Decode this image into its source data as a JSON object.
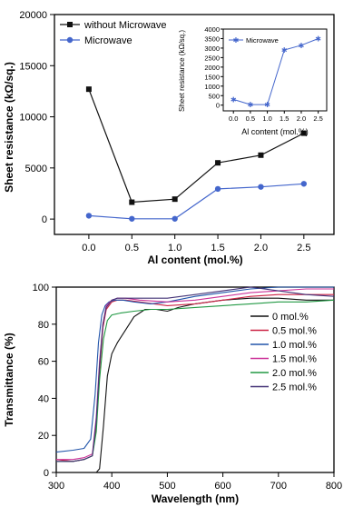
{
  "chart_data": [
    {
      "type": "line",
      "panel": "top",
      "title": "",
      "xlabel": "Al content (mol.%)",
      "ylabel": "Sheet resistance (kΩ/sq.)",
      "xlim": [
        -0.4,
        2.85
      ],
      "ylim": [
        -1500,
        20000
      ],
      "x": [
        0.0,
        0.5,
        1.0,
        1.5,
        2.0,
        2.5
      ],
      "xticks": [
        "0.0",
        "0.5",
        "1.0",
        "1.5",
        "2.0",
        "2.5"
      ],
      "yticks": [
        "0",
        "5000",
        "10000",
        "15000",
        "20000"
      ],
      "series": [
        {
          "name": "without Microwave",
          "marker": "square",
          "color": "#111111",
          "values": [
            12700,
            1650,
            1950,
            5500,
            6250,
            8400
          ]
        },
        {
          "name": "Microwave",
          "marker": "circle",
          "color": "#4466cc",
          "values": [
            330,
            30,
            30,
            2950,
            3150,
            3450
          ]
        }
      ],
      "legend": "top-left",
      "inset": {
        "type": "line",
        "xlabel": "Al content (mol.%)",
        "ylabel": "Sheet resistance (kΩ/sq.)",
        "xlim": [
          -0.3,
          2.75
        ],
        "ylim": [
          -300,
          4000
        ],
        "xticks": [
          "0.0",
          "0.5",
          "1.0",
          "1.5",
          "2.0",
          "2.5"
        ],
        "yticks": [
          "0",
          "500",
          "1000",
          "1500",
          "2000",
          "2500",
          "3000",
          "3500",
          "4000"
        ],
        "series": [
          {
            "name": "Microwave",
            "marker": "star",
            "color": "#4466cc",
            "x": [
              0.0,
              0.5,
              1.0,
              1.5,
              2.0,
              2.5
            ],
            "values": [
              300,
              30,
              30,
              2900,
              3150,
              3500
            ]
          }
        ]
      }
    },
    {
      "type": "line",
      "panel": "bottom",
      "title": "",
      "xlabel": "Wavelength (nm)",
      "ylabel": "Transmittance (%)",
      "xlim": [
        300,
        800
      ],
      "ylim": [
        0,
        100
      ],
      "xticks": [
        "300",
        "400",
        "500",
        "600",
        "700",
        "800"
      ],
      "yticks": [
        "0",
        "20",
        "40",
        "60",
        "80",
        "100"
      ],
      "legend": "right",
      "series": [
        {
          "name": "0 mol.%",
          "color": "#111111",
          "x": [
            300,
            340,
            360,
            372,
            378,
            385,
            392,
            400,
            410,
            425,
            440,
            460,
            480,
            500,
            520,
            550,
            600,
            650,
            700,
            750,
            800
          ],
          "values": [
            0,
            0,
            0,
            0,
            2,
            25,
            52,
            64,
            70,
            77,
            84,
            88,
            88,
            87,
            89,
            91,
            93,
            94,
            94,
            93,
            93
          ]
        },
        {
          "name": "0.5 mol.%",
          "color": "#cc2244",
          "x": [
            300,
            330,
            350,
            365,
            372,
            378,
            384,
            390,
            400,
            410,
            425,
            450,
            500,
            550,
            600,
            650,
            700,
            750,
            800
          ],
          "values": [
            7,
            6,
            7,
            9,
            25,
            55,
            78,
            88,
            92,
            93,
            93,
            92,
            90,
            91,
            93,
            95,
            96,
            96,
            96
          ]
        },
        {
          "name": "1.0 mol.%",
          "color": "#2255aa",
          "x": [
            300,
            330,
            350,
            362,
            370,
            376,
            382,
            388,
            395,
            405,
            420,
            440,
            470,
            500,
            550,
            600,
            650,
            700,
            750,
            800
          ],
          "values": [
            11,
            12,
            13,
            18,
            42,
            70,
            85,
            90,
            92,
            93,
            93,
            92,
            91,
            92,
            95,
            97,
            99,
            100,
            100,
            100
          ]
        },
        {
          "name": "1.5 mol.%",
          "color": "#cc3399",
          "x": [
            300,
            330,
            350,
            365,
            372,
            378,
            384,
            390,
            400,
            410,
            425,
            450,
            500,
            550,
            600,
            650,
            700,
            750,
            800
          ],
          "values": [
            7,
            7,
            8,
            10,
            30,
            60,
            80,
            90,
            93,
            94,
            94,
            93,
            92,
            93,
            95,
            97,
            98,
            99,
            99
          ]
        },
        {
          "name": "2.0 mol.%",
          "color": "#229944",
          "x": [
            300,
            330,
            350,
            365,
            372,
            378,
            385,
            392,
            400,
            415,
            440,
            470,
            500,
            550,
            600,
            650,
            700,
            750,
            800
          ],
          "values": [
            6,
            6,
            7,
            9,
            22,
            50,
            72,
            82,
            85,
            86,
            87,
            88,
            88,
            89,
            90,
            91,
            92,
            92,
            93
          ]
        },
        {
          "name": "2.5 mol.%",
          "color": "#443377",
          "x": [
            300,
            330,
            350,
            365,
            372,
            378,
            384,
            390,
            400,
            410,
            425,
            450,
            500,
            550,
            600,
            650,
            700,
            750,
            800
          ],
          "values": [
            6,
            6,
            7,
            9,
            28,
            58,
            80,
            89,
            93,
            94,
            94,
            94,
            94,
            96,
            98,
            100,
            98,
            96,
            95
          ]
        }
      ]
    }
  ]
}
